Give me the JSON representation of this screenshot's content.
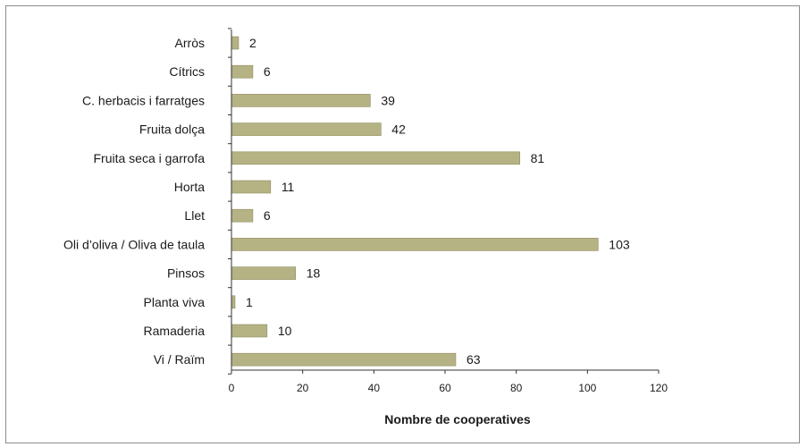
{
  "chart_data": {
    "type": "bar",
    "orientation": "horizontal",
    "categories": [
      "Arròs",
      "Cítrics",
      "C. herbacis i farratges",
      "Fruita dolça",
      "Fruita seca i garrofa",
      "Horta",
      "Llet",
      "Oli d’oliva / Oliva de taula",
      "Pinsos",
      "Planta viva",
      "Ramaderia",
      "Vi / Raïm"
    ],
    "values": [
      2,
      6,
      39,
      42,
      81,
      11,
      6,
      103,
      18,
      1,
      10,
      63
    ],
    "xlabel": "Nombre de cooperatives",
    "xlim": [
      0,
      120
    ],
    "xticks": [
      "0",
      "20",
      "40",
      "60",
      "80",
      "100",
      "120"
    ],
    "grid": false,
    "bar_color": "#b5b383",
    "bar_edge_color": "#8e8c60"
  }
}
